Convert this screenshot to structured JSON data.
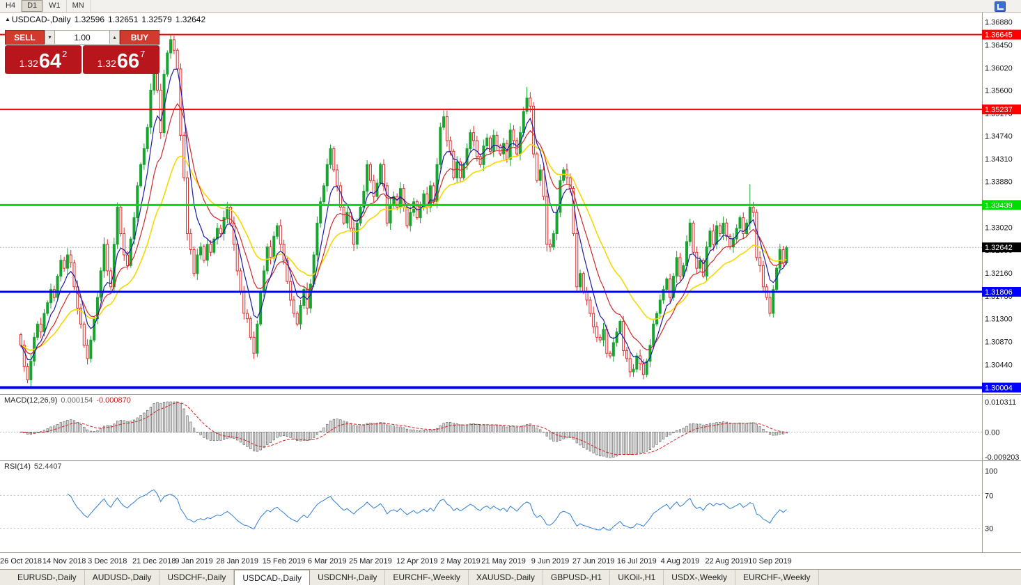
{
  "toolbar": {
    "timeframes": [
      {
        "label": "H4",
        "active": false
      },
      {
        "label": "D1",
        "active": true
      },
      {
        "label": "W1",
        "active": false
      },
      {
        "label": "MN",
        "active": false
      }
    ]
  },
  "chart": {
    "title_symbol": "USDCAD-,Daily",
    "ohlc": {
      "open": "1.32596",
      "high": "1.32651",
      "low": "1.32579",
      "close": "1.32642"
    },
    "trade_widget": {
      "sell_label": "SELL",
      "buy_label": "BUY",
      "volume": "1.00",
      "sell_price_small": "1.32",
      "sell_price_big": "64",
      "sell_price_sup": "2",
      "buy_price_small": "1.32",
      "buy_price_big": "66",
      "buy_price_sup": "7"
    }
  },
  "chart_data": {
    "type": "candlestick",
    "symbol": "USDCAD",
    "period": "Daily",
    "first_open": 1.31,
    "closes": [
      1.308,
      1.304,
      1.3015,
      1.305,
      1.3095,
      1.312,
      1.3105,
      1.314,
      1.316,
      1.3185,
      1.317,
      1.321,
      1.324,
      1.3225,
      1.325,
      1.3235,
      1.319,
      1.315,
      1.312,
      1.308,
      1.3055,
      1.309,
      1.313,
      1.317,
      1.322,
      1.327,
      1.322,
      1.319,
      1.327,
      1.334,
      1.329,
      1.325,
      1.323,
      1.328,
      1.332,
      1.338,
      1.342,
      1.345,
      1.349,
      1.356,
      1.36,
      1.356,
      1.348,
      1.359,
      1.363,
      1.3655,
      1.3635,
      1.36,
      1.3475,
      1.3395,
      1.329,
      1.326,
      1.3215,
      1.325,
      1.3265,
      1.324,
      1.327,
      1.3255,
      1.328,
      1.33,
      1.329,
      1.332,
      1.334,
      1.331,
      1.327,
      1.322,
      1.318,
      1.314,
      1.313,
      1.3095,
      1.3065,
      1.312,
      1.318,
      1.322,
      1.3265,
      1.3245,
      1.3285,
      1.3305,
      1.327,
      1.324,
      1.32,
      1.3165,
      1.314,
      1.312,
      1.3155,
      1.3185,
      1.315,
      1.3195,
      1.325,
      1.331,
      1.335,
      1.338,
      1.342,
      1.345,
      1.341,
      1.338,
      1.334,
      1.331,
      1.333,
      1.33,
      1.327,
      1.331,
      1.334,
      1.337,
      1.342,
      1.339,
      1.336,
      1.3385,
      1.342,
      1.338,
      1.331,
      1.3345,
      1.336,
      1.334,
      1.3375,
      1.334,
      1.3305,
      1.333,
      1.335,
      1.332,
      1.334,
      1.3365,
      1.334,
      1.338,
      1.335,
      1.342,
      1.349,
      1.351,
      1.3465,
      1.3445,
      1.3395,
      1.3425,
      1.3395,
      1.342,
      1.345,
      1.348,
      1.3465,
      1.3435,
      1.342,
      1.3455,
      1.347,
      1.3445,
      1.3475,
      1.3455,
      1.344,
      1.346,
      1.343,
      1.3485,
      1.3465,
      1.344,
      1.348,
      1.352,
      1.3545,
      1.353,
      1.344,
      1.339,
      1.341,
      1.336,
      1.327,
      1.3265,
      1.329,
      1.333,
      1.339,
      1.341,
      1.3395,
      1.3375,
      1.329,
      1.319,
      1.3215,
      1.318,
      1.3165,
      1.314,
      1.3115,
      1.3095,
      1.309,
      1.311,
      1.3065,
      1.306,
      1.3085,
      1.3105,
      1.3125,
      1.307,
      1.3055,
      1.303,
      1.3035,
      1.306,
      1.3045,
      1.3025,
      1.305,
      1.308,
      1.312,
      1.314,
      1.3165,
      1.3185,
      1.3205,
      1.317,
      1.321,
      1.3245,
      1.321,
      1.323,
      1.3275,
      1.331,
      1.3255,
      1.3225,
      1.324,
      1.321,
      1.3265,
      1.3295,
      1.327,
      1.3305,
      1.329,
      1.331,
      1.3285,
      1.3265,
      1.328,
      1.33,
      1.332,
      1.329,
      1.331,
      1.334,
      1.333,
      1.3245,
      1.323,
      1.319,
      1.317,
      1.314,
      1.3185,
      1.3225,
      1.326,
      1.3235,
      1.3264
    ],
    "high_overrides": {
      "45": 1.3665,
      "127": 1.3522,
      "152": 1.3566,
      "219": 1.3383
    },
    "low_overrides": {
      "183": 1.302,
      "187": 1.3016,
      "225": 1.3134
    },
    "up_color": "#17a42f",
    "down_color": "#e22828",
    "x_labels": [
      {
        "label": "26 Oct 2018",
        "index": 0
      },
      {
        "label": "14 Nov 2018",
        "index": 13
      },
      {
        "label": "3 Dec 2018",
        "index": 26
      },
      {
        "label": "21 Dec 2018",
        "index": 40
      },
      {
        "label": "9 Jan 2019",
        "index": 52
      },
      {
        "label": "28 Jan 2019",
        "index": 65
      },
      {
        "label": "15 Feb 2019",
        "index": 79
      },
      {
        "label": "6 Mar 2019",
        "index": 92
      },
      {
        "label": "25 Mar 2019",
        "index": 105
      },
      {
        "label": "12 Apr 2019",
        "index": 119
      },
      {
        "label": "2 May 2019",
        "index": 132
      },
      {
        "label": "21 May 2019",
        "index": 145
      },
      {
        "label": "9 Jun 2019",
        "index": 159
      },
      {
        "label": "27 Jun 2019",
        "index": 172
      },
      {
        "label": "16 Jul 2019",
        "index": 185
      },
      {
        "label": "4 Aug 2019",
        "index": 198
      },
      {
        "label": "22 Aug 2019",
        "index": 212
      },
      {
        "label": "10 Sep 2019",
        "index": 225
      }
    ],
    "y_ticks": [
      "1.36880",
      "1.36450",
      "1.36020",
      "1.35600",
      "1.35170",
      "1.34740",
      "1.34310",
      "1.33880",
      "1.33450",
      "1.33020",
      "1.32590",
      "1.32160",
      "1.31730",
      "1.31300",
      "1.30870",
      "1.30440",
      "1.30010"
    ],
    "hlines": [
      {
        "price": 1.36645,
        "label": "1.36645",
        "color": "#ff0000",
        "width": 2
      },
      {
        "price": 1.35237,
        "label": "1.35237",
        "color": "#ff0000",
        "width": 2
      },
      {
        "price": 1.33439,
        "label": "1.33439",
        "color": "#00dd00",
        "width": 3
      },
      {
        "price": 1.31806,
        "label": "1.31806",
        "color": "#0000ff",
        "width": 3
      },
      {
        "price": 1.30004,
        "label": "1.30004",
        "color": "#0000ff",
        "width": 4
      }
    ],
    "current_price": {
      "value": 1.32642,
      "label": "1.32642",
      "badge_color": "#000000"
    },
    "moving_averages": [
      {
        "name": "slow-ma",
        "period": 26,
        "color": "#f5d800",
        "width": 1.6
      },
      {
        "name": "mid-ma",
        "period": 13,
        "color": "#d02828",
        "width": 1.2
      },
      {
        "name": "fast-ma",
        "period": 6,
        "color": "#1a1aa6",
        "width": 1.2
      }
    ],
    "indicators": [
      {
        "name": "MACD(12,26,9)",
        "main_value": "0.000154",
        "signal_value": "-0.000870",
        "params": [
          12,
          26,
          9
        ],
        "axis": [
          "0.010311",
          "0.00",
          "-0.009203"
        ],
        "histogram_fill": "#dcdcdc",
        "histogram_stroke": "#5a5a5a",
        "signal_color": "#d02020"
      },
      {
        "name": "RSI(14)",
        "value": "52.4407",
        "period": 14,
        "axis": [
          "100",
          "70",
          "30"
        ],
        "levels": [
          70,
          30
        ],
        "line_color": "#2d7dd2"
      }
    ]
  },
  "tabs": [
    {
      "label": "EURUSD-,Daily",
      "active": false
    },
    {
      "label": "AUDUSD-,Daily",
      "active": false
    },
    {
      "label": "USDCHF-,Daily",
      "active": false
    },
    {
      "label": "USDCAD-,Daily",
      "active": true
    },
    {
      "label": "USDCNH-,Daily",
      "active": false
    },
    {
      "label": "EURCHF-,Weekly",
      "active": false
    },
    {
      "label": "XAUUSD-,Daily",
      "active": false
    },
    {
      "label": "GBPUSD-,H1",
      "active": false
    },
    {
      "label": "UKOil-,H1",
      "active": false
    },
    {
      "label": "USDX-,Weekly",
      "active": false
    },
    {
      "label": "EURCHF-,Weekly",
      "active": false
    }
  ]
}
